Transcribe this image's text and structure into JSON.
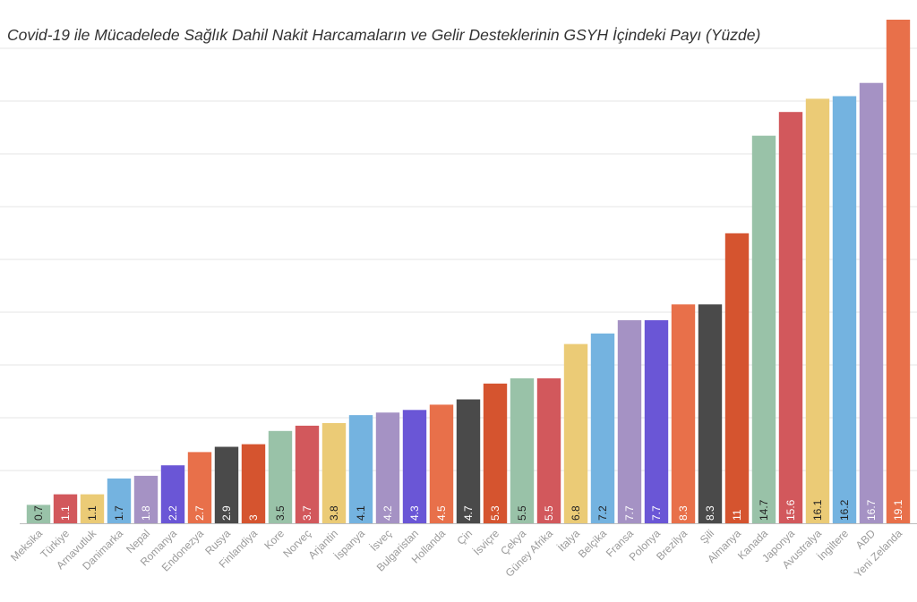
{
  "chart_data": {
    "type": "bar",
    "title": "Covid-19 ile Mücadelede Sağlık Dahil Nakit Harcamaların ve Gelir Desteklerinin GSYH İçindeki Payı (Yüzde)",
    "categories": [
      "Meksika",
      "Türkiye",
      "Arnavutluk",
      "Danimarka",
      "Nepal",
      "Romanya",
      "Endonezya",
      "Rusya",
      "Finlandiya",
      "Kore",
      "Norveç",
      "Arjantin",
      "İspanya",
      "İsveç",
      "Bulgaristan",
      "Hollanda",
      "Çin",
      "İsviçre",
      "Çekya",
      "Güney Afrika",
      "İtalya",
      "Belçika",
      "Fransa",
      "Polonya",
      "Brezilya",
      "Şili",
      "Almanya",
      "Kanada",
      "Japonya",
      "Avustralya",
      "İngiltere",
      "ABD",
      "Yeni Zelanda"
    ],
    "values": [
      0.7,
      1.1,
      1.1,
      1.7,
      1.8,
      2.2,
      2.7,
      2.9,
      3,
      3.5,
      3.7,
      3.8,
      4.1,
      4.2,
      4.3,
      4.5,
      4.7,
      5.3,
      5.5,
      5.5,
      6.8,
      7.2,
      7.7,
      7.7,
      8.3,
      8.3,
      11,
      14.7,
      15.6,
      16.1,
      16.2,
      16.7,
      19.1
    ],
    "value_labels": [
      "0.7",
      "1.1",
      "1.1",
      "1.7",
      "1.8",
      "2.2",
      "2.7",
      "2.9",
      "3",
      "3.5",
      "3.7",
      "3.8",
      "4.1",
      "4.2",
      "4.3",
      "4.5",
      "4.7",
      "5.3",
      "5.5",
      "5.5",
      "6.8",
      "7.2",
      "7.7",
      "7.7",
      "8.3",
      "8.3",
      "11",
      "14.7",
      "15.6",
      "16.1",
      "16.2",
      "16.7",
      "19.1"
    ],
    "colors": [
      "#99c2a8",
      "#d2585c",
      "#ebcb76",
      "#74b3e0",
      "#a592c4",
      "#6a56d6",
      "#e8704a",
      "#4a4a4a",
      "#d5542f",
      "#99c2a8",
      "#d2585c",
      "#ebcb76",
      "#74b3e0",
      "#a592c4",
      "#6a56d6",
      "#e8704a",
      "#4a4a4a",
      "#d5542f",
      "#99c2a8",
      "#d2585c",
      "#ebcb76",
      "#74b3e0",
      "#a592c4",
      "#6a56d6",
      "#e8704a",
      "#4a4a4a",
      "#d5542f",
      "#99c2a8",
      "#d2585c",
      "#ebcb76",
      "#74b3e0",
      "#a592c4",
      "#e8704a"
    ],
    "ylim": [
      0,
      19.1
    ],
    "grid": true,
    "legend": "none"
  }
}
